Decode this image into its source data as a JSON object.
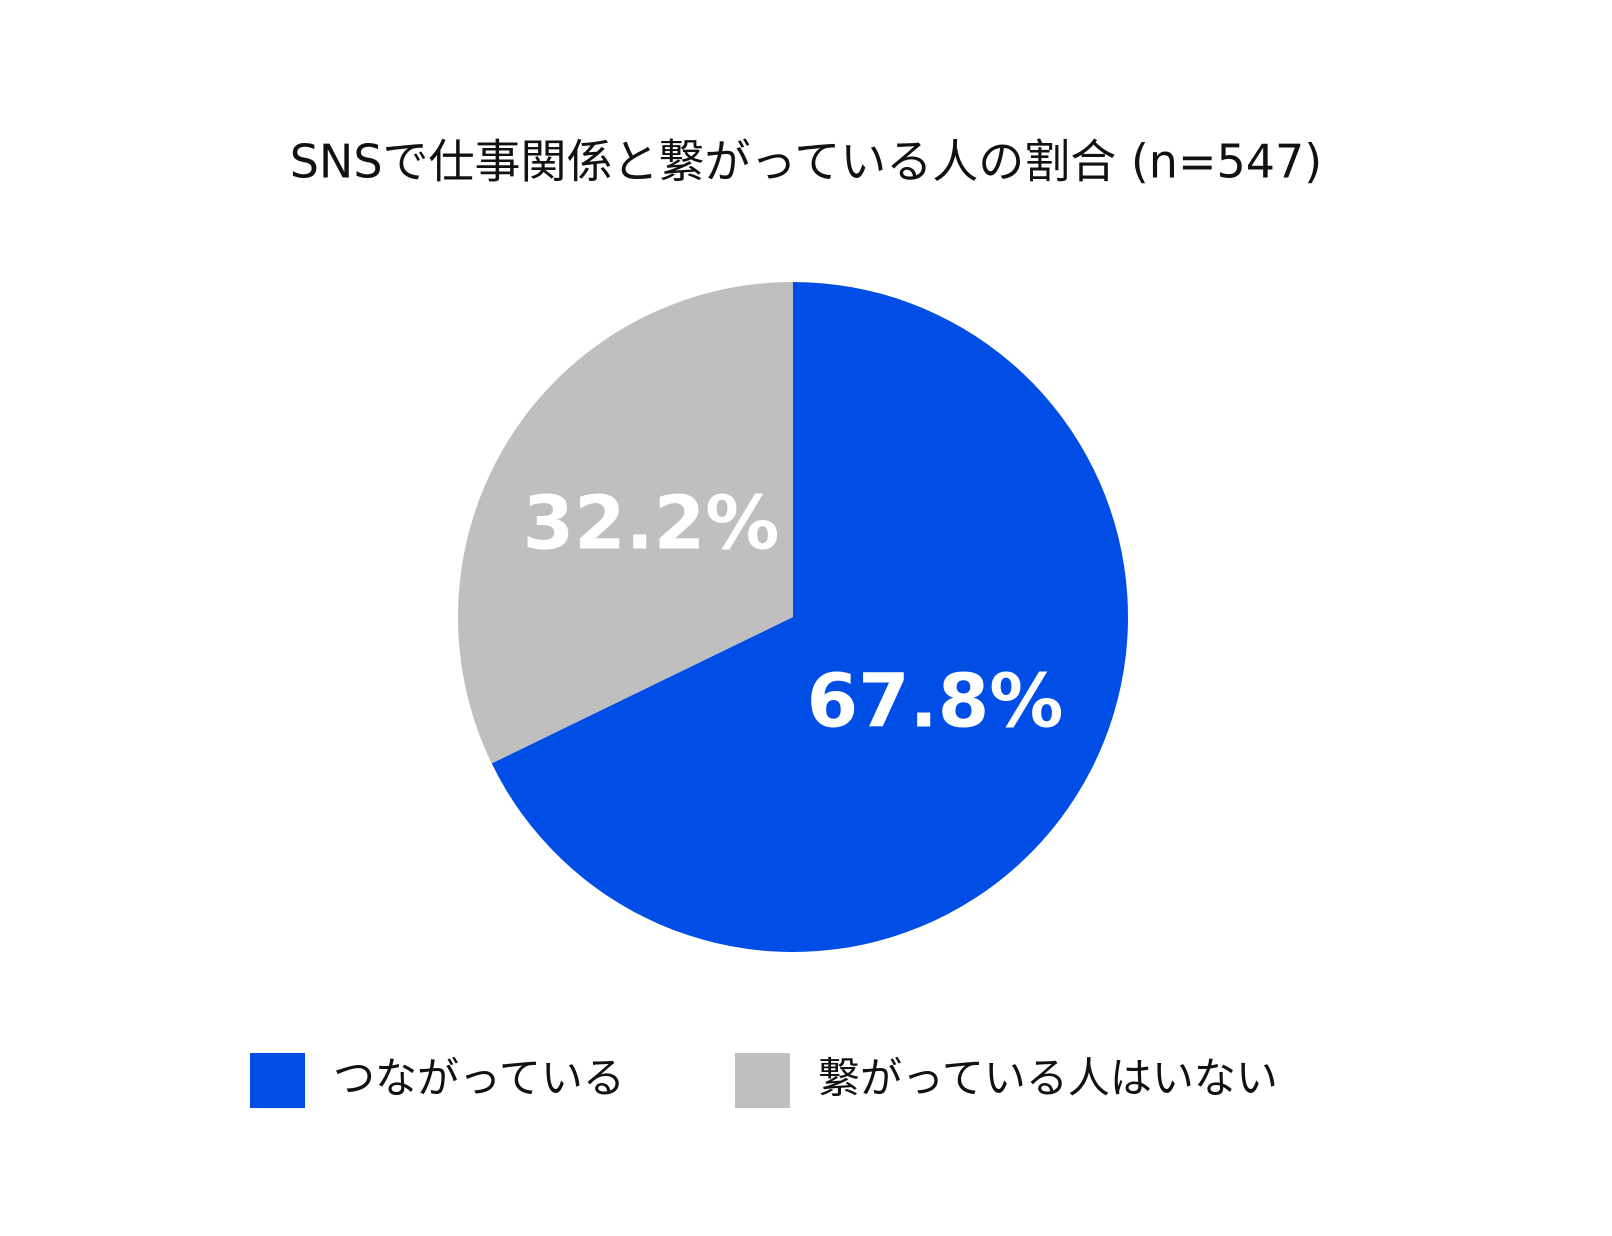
{
  "chart_data": {
    "type": "pie",
    "title": "SNSで仕事関係と繋がっている人の割合 (n=547)",
    "categories": [
      "つながっている",
      "繋がっている人はいない"
    ],
    "values": [
      67.8,
      32.2
    ],
    "value_labels": [
      "67.8%",
      "32.2%"
    ],
    "colors": [
      "#004ee5",
      "#bfbfbf"
    ]
  }
}
